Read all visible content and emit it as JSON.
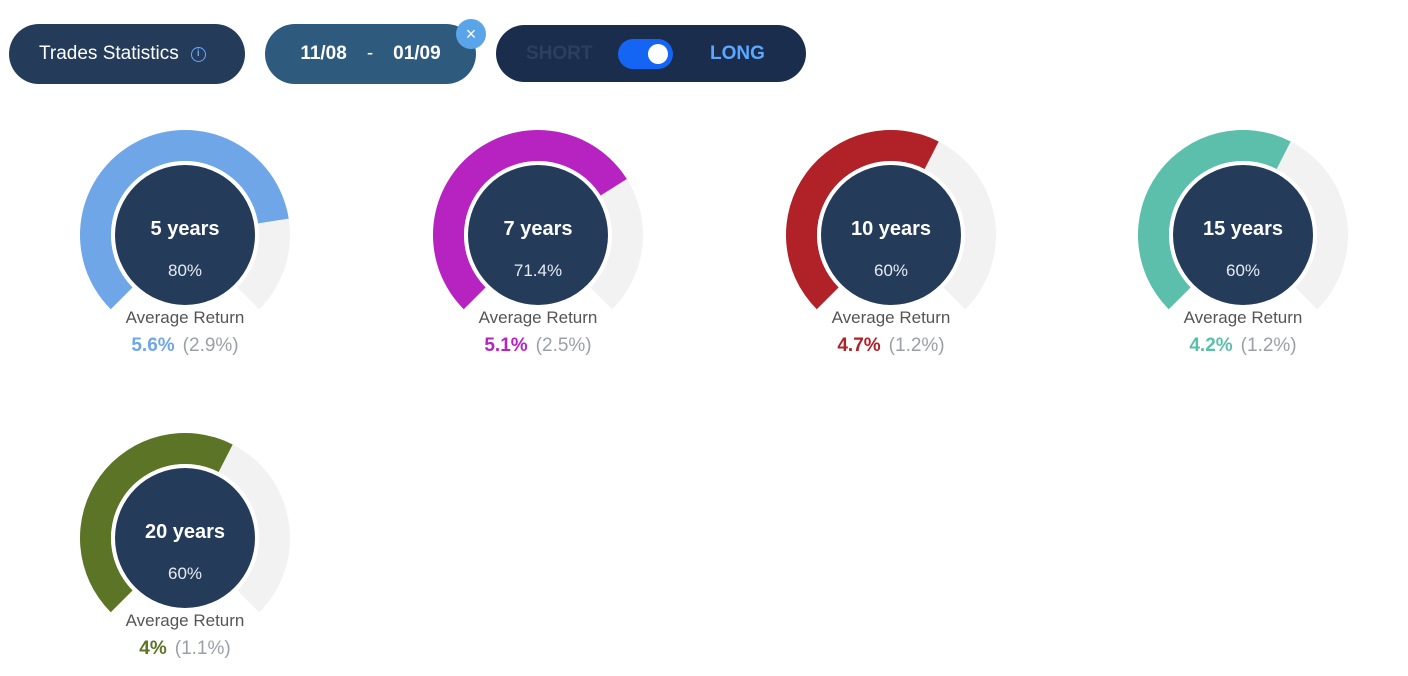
{
  "toolbar": {
    "stats_label": "Trades Statistics",
    "info_icon": "i",
    "date_from": "11/08",
    "date_sep": "-",
    "date_to": "01/09",
    "close_icon": "×",
    "short_label": "SHORT",
    "long_label": "LONG",
    "toggle_state": "long"
  },
  "chart_data": {
    "type": "gauge",
    "gauges": [
      {
        "label": "5 years",
        "percent_text": "80%",
        "value": 80,
        "avg_label": "Average Return",
        "avg": "5.6%",
        "sub": "(2.9%)",
        "color": "#6ea6e8"
      },
      {
        "label": "7 years",
        "percent_text": "71.4%",
        "value": 71.4,
        "avg_label": "Average Return",
        "avg": "5.1%",
        "sub": "(2.5%)",
        "color": "#b623c1"
      },
      {
        "label": "10 years",
        "percent_text": "60%",
        "value": 60,
        "avg_label": "Average Return",
        "avg": "4.7%",
        "sub": "(1.2%)",
        "color": "#b02128"
      },
      {
        "label": "15 years",
        "percent_text": "60%",
        "value": 60,
        "avg_label": "Average Return",
        "avg": "4.2%",
        "sub": "(1.2%)",
        "color": "#5bbfab"
      },
      {
        "label": "20 years",
        "percent_text": "60%",
        "value": 60,
        "avg_label": "Average Return",
        "avg": "4%",
        "sub": "(1.1%)",
        "color": "#5b7425"
      }
    ],
    "track_color": "#f2f2f2",
    "center_color": "#243b5a"
  }
}
